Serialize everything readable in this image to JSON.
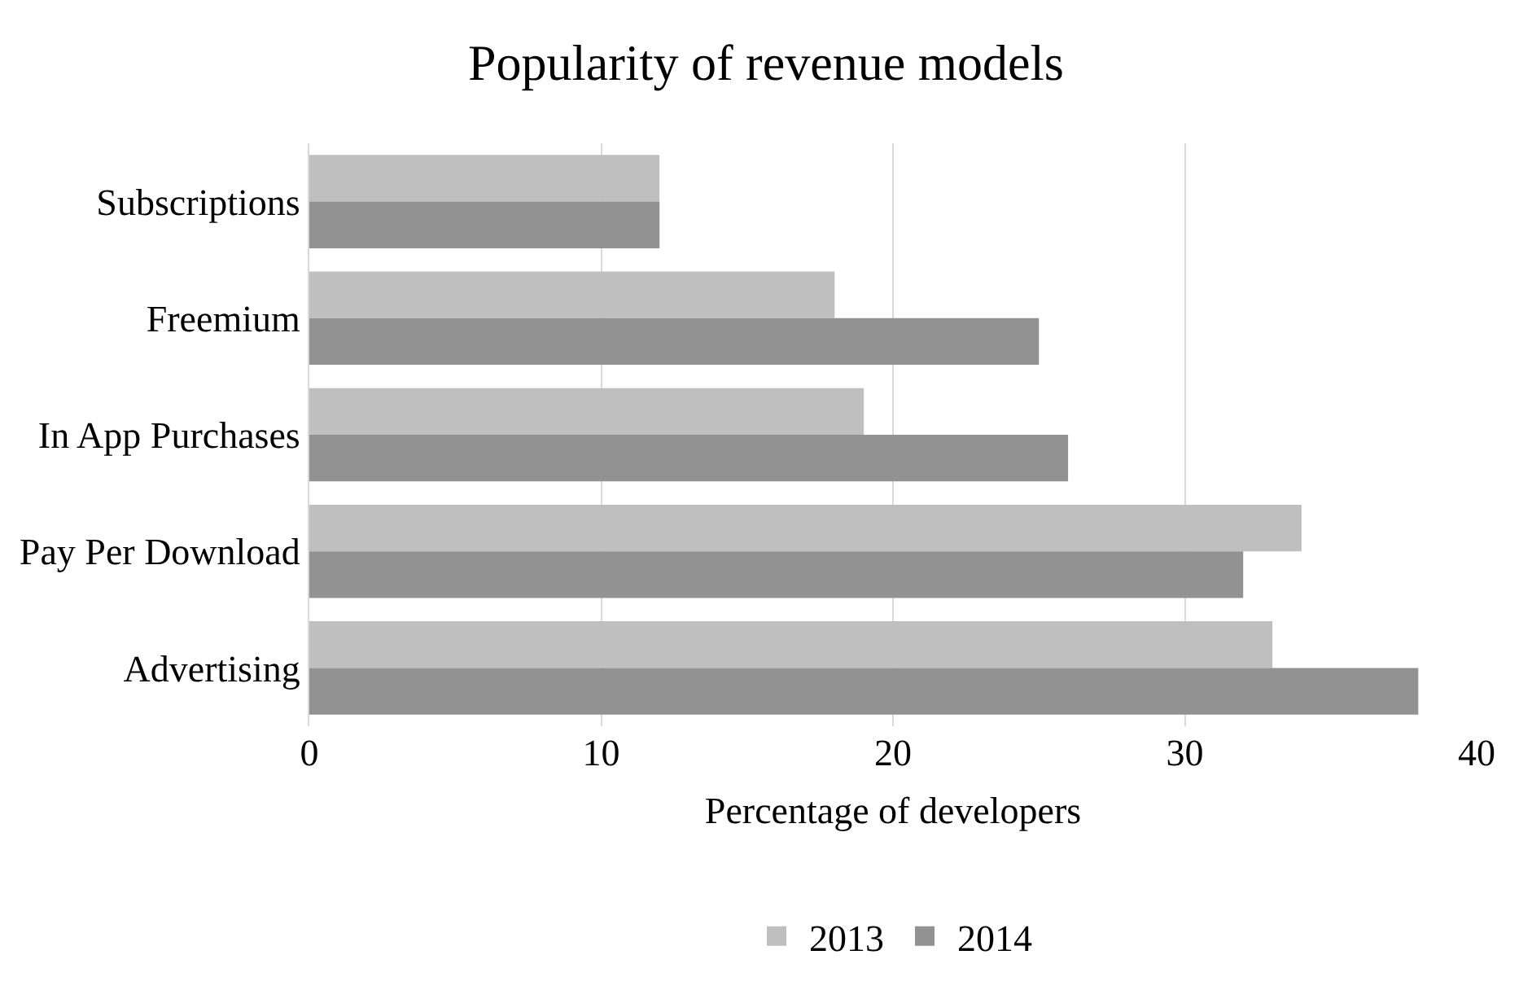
{
  "chart_data": {
    "type": "bar",
    "orientation": "horizontal",
    "title": "Popularity of revenue models",
    "xlabel": "Percentage of developers",
    "categories": [
      "Subscriptions",
      "Freemium",
      "In App Purchases",
      "Pay Per Download",
      "Advertising"
    ],
    "series": [
      {
        "name": "2013",
        "color": "#bfbfbf",
        "values": [
          12,
          18,
          19,
          34,
          33
        ]
      },
      {
        "name": "2014",
        "color": "#929292",
        "values": [
          12,
          25,
          26,
          32,
          38
        ]
      }
    ],
    "xlim": [
      0,
      40
    ],
    "xticks": [
      0,
      10,
      20,
      30,
      40
    ],
    "grid": "x",
    "legend": "bottom"
  }
}
